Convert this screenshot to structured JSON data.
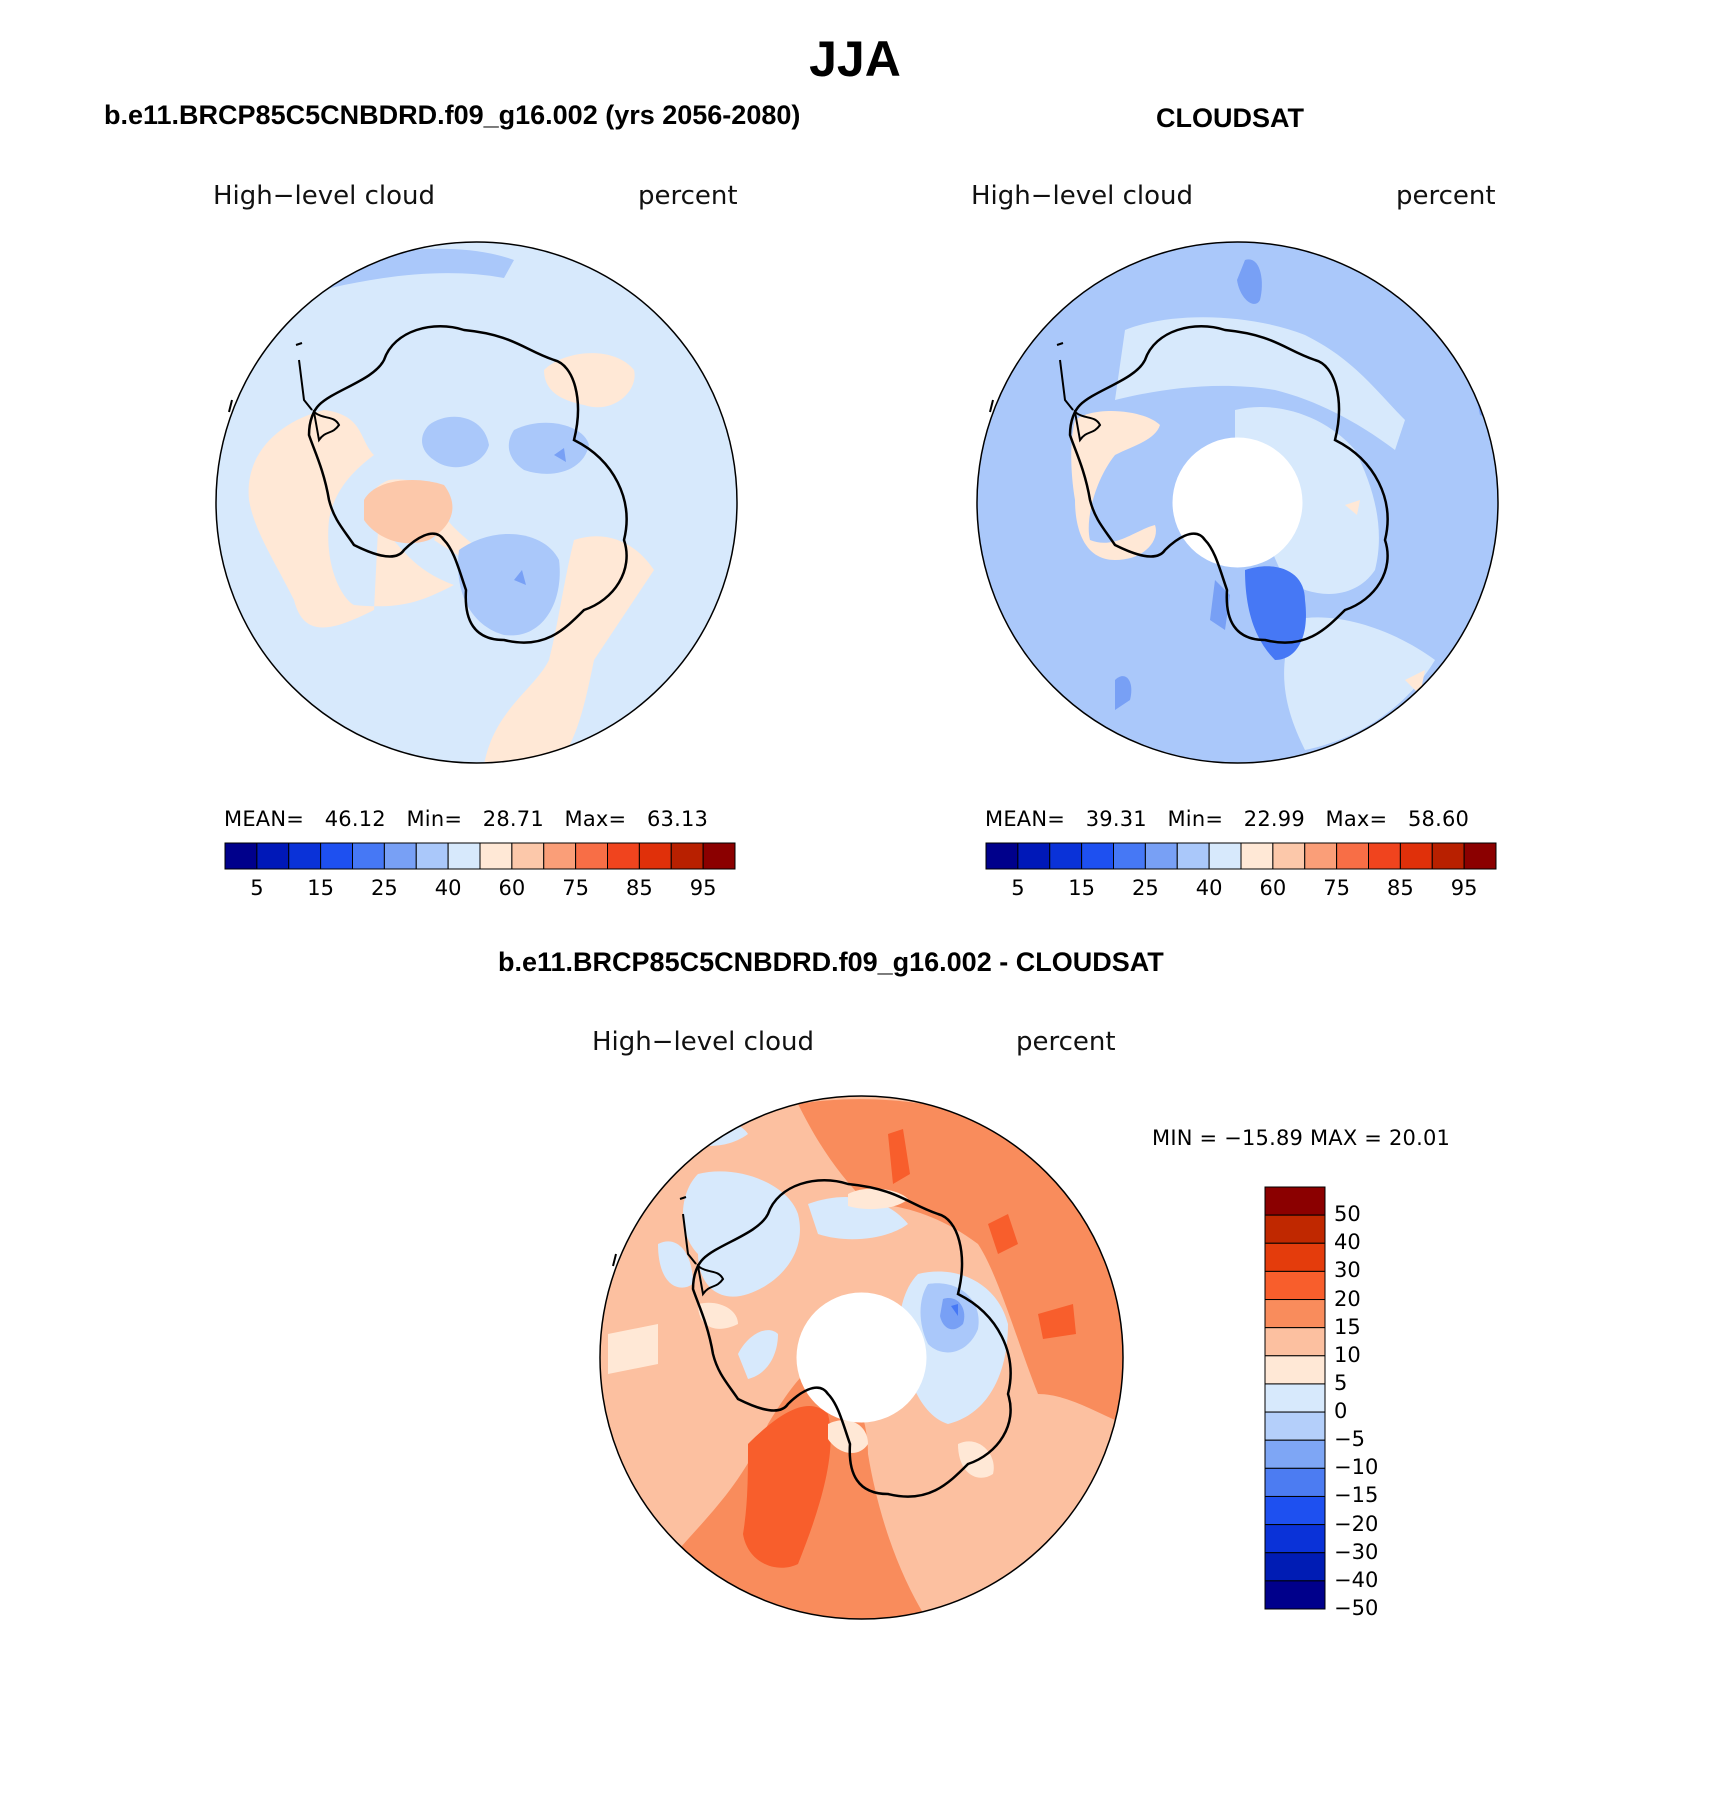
{
  "title": "JJA",
  "panels": [
    {
      "id": "model",
      "title": "b.e11.BRCP85C5CNBDRD.f09_g16.002 (yrs 2056-2080)",
      "left_label": "High−level cloud",
      "right_label": "percent",
      "stats": {
        "mean_label": "MEAN=",
        "mean": "46.12",
        "min_label": "Min=",
        "min": "28.71",
        "max_label": "Max=",
        "max": "63.13"
      }
    },
    {
      "id": "obs",
      "title": "CLOUDSAT",
      "left_label": "High−level cloud",
      "right_label": "percent",
      "stats": {
        "mean_label": "MEAN=",
        "mean": "39.31",
        "min_label": "Min=",
        "min": "22.99",
        "max_label": "Max=",
        "max": "58.60"
      }
    },
    {
      "id": "diff",
      "title": "b.e11.BRCP85C5CNBDRD.f09_g16.002 - CLOUDSAT",
      "left_label": "High−level cloud",
      "right_label": "percent",
      "minmax": "MIN = −15.89 MAX =   20.01"
    }
  ],
  "colorbar_abs": {
    "colors": [
      "#00008b",
      "#0018b8",
      "#0a32d8",
      "#1e50f0",
      "#4678f5",
      "#78a0f5",
      "#aac8fa",
      "#d7e9fc",
      "#ffe8d6",
      "#fcc8aa",
      "#fa9e78",
      "#f86e46",
      "#f0441e",
      "#e0300a",
      "#b82000",
      "#8b0000"
    ],
    "tick_labels": [
      "5",
      "15",
      "25",
      "40",
      "60",
      "75",
      "85",
      "95"
    ]
  },
  "colorbar_diff": {
    "colors_top_to_bottom": [
      "#8b0000",
      "#c02800",
      "#e43c0c",
      "#f85e2c",
      "#f98c5c",
      "#fcc0a0",
      "#ffe8d6",
      "#d7e9fc",
      "#b4cffa",
      "#7ea6f5",
      "#4c7cf2",
      "#1e50f0",
      "#0a32d8",
      "#001cb4",
      "#00008b"
    ],
    "tick_labels": [
      "50",
      "40",
      "30",
      "20",
      "15",
      "10",
      "5",
      "0",
      "−5",
      "−10",
      "−15",
      "−20",
      "−30",
      "−40",
      "−50"
    ]
  }
}
